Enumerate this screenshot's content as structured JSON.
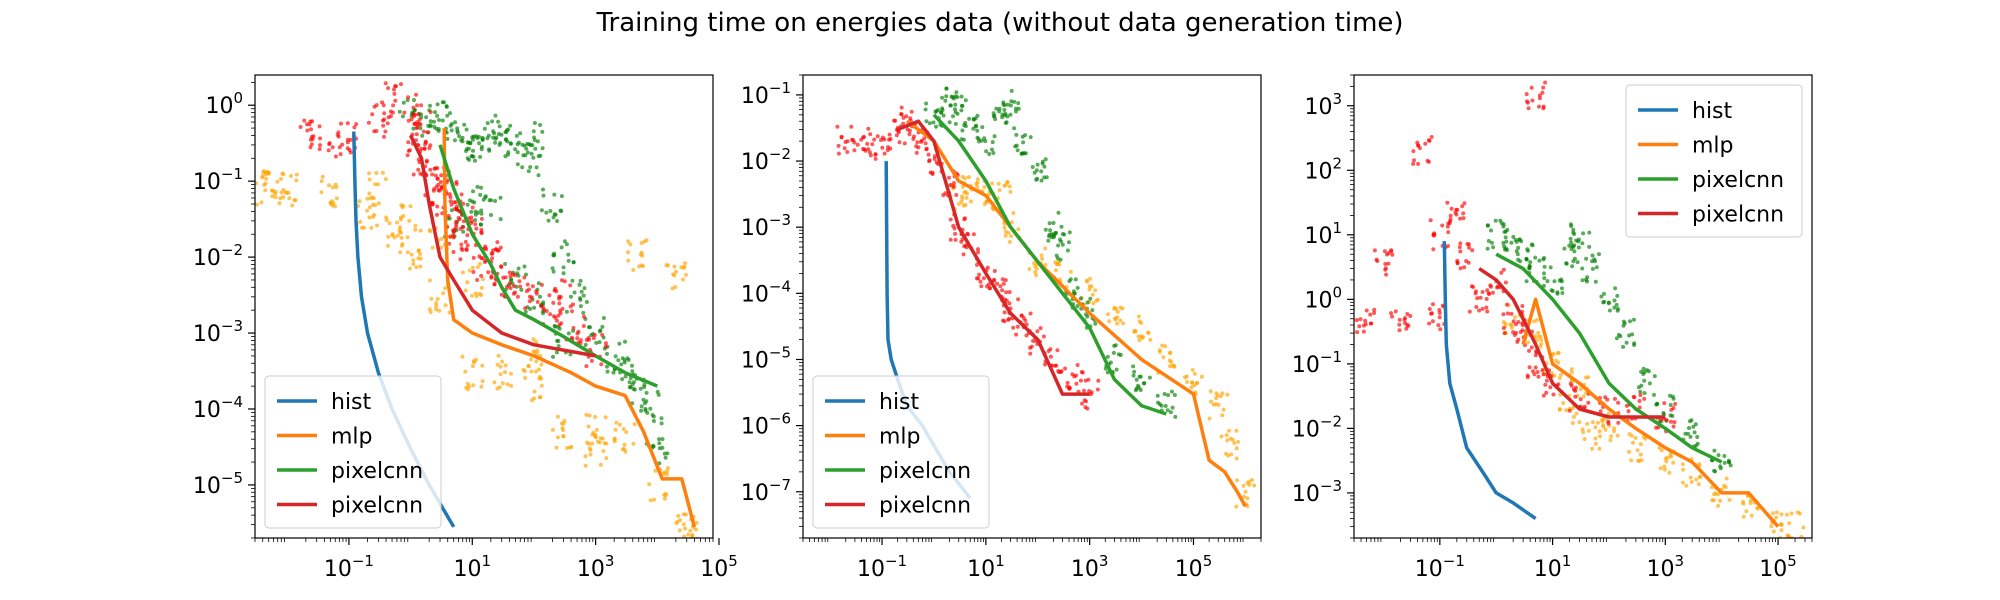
{
  "figure": {
    "title": "Training time on energies data (without data generation time)"
  },
  "colors": {
    "hist": "#1f77b4",
    "mlp": "#ff7f0e",
    "pixelcnn_a": "#2ca02c",
    "pixelcnn_b": "#d62728",
    "mlp_points": "#ffa500",
    "pixelcnn_a_points": "#008000",
    "pixelcnn_b_points": "#ff0000"
  },
  "chart_data": [
    {
      "type": "line",
      "title": "",
      "xlabel": "",
      "ylabel": "",
      "xscale": "log",
      "yscale": "log",
      "xlim": [
        0.003,
        80000
      ],
      "ylim": [
        2e-06,
        2.5
      ],
      "xticks": [
        0.1,
        10,
        1000,
        100000
      ],
      "xtick_labels": [
        {
          "base": "10",
          "exp": "−1"
        },
        {
          "base": "10",
          "exp": "1"
        },
        {
          "base": "10",
          "exp": "3"
        },
        {
          "base": "10",
          "exp": "5"
        }
      ],
      "yticks": [
        1e-05,
        0.0001,
        0.001,
        0.01,
        0.1,
        1
      ],
      "ytick_labels": [
        {
          "base": "10",
          "exp": "−5"
        },
        {
          "base": "10",
          "exp": "−4"
        },
        {
          "base": "10",
          "exp": "−3"
        },
        {
          "base": "10",
          "exp": "−2"
        },
        {
          "base": "10",
          "exp": "−1"
        },
        {
          "base": "10",
          "exp": "0"
        }
      ],
      "legend": {
        "position": "lower left",
        "entries": [
          "hist",
          "mlp",
          "pixelcnn",
          "pixelcnn"
        ]
      },
      "series": [
        {
          "name": "hist",
          "kind": "line",
          "color_key": "hist",
          "x": [
            0.12,
            0.125,
            0.13,
            0.14,
            0.16,
            0.2,
            0.3,
            0.5,
            1,
            2,
            5
          ],
          "y": [
            0.45,
            0.1,
            0.03,
            0.01,
            0.003,
            0.001,
            0.0003,
            0.0001,
            3e-05,
            1e-05,
            2.8e-06
          ]
        },
        {
          "name": "mlp",
          "kind": "line",
          "color_key": "mlp",
          "x": [
            3.5,
            3.6,
            4,
            5,
            10,
            30,
            100,
            400,
            1000,
            3000,
            6000,
            12000,
            25000,
            40000
          ],
          "y": [
            0.5,
            0.05,
            0.005,
            0.0015,
            0.001,
            0.0007,
            0.0005,
            0.0003,
            0.0002,
            0.00015,
            5e-05,
            1.2e-05,
            1.2e-05,
            2.8e-06
          ]
        },
        {
          "name": "pixelcnn",
          "kind": "line",
          "color_key": "pixelcnn_a",
          "x": [
            3,
            5,
            10,
            20,
            30,
            50,
            100,
            300,
            1000,
            3000,
            10000
          ],
          "y": [
            0.3,
            0.08,
            0.02,
            0.008,
            0.004,
            0.002,
            0.0015,
            0.0009,
            0.0005,
            0.0003,
            0.0002
          ]
        },
        {
          "name": "pixelcnn",
          "kind": "line",
          "color_key": "pixelcnn_b",
          "x": [
            1,
            1.5,
            2,
            3,
            5,
            10,
            30,
            100,
            1000
          ],
          "y": [
            0.4,
            0.2,
            0.05,
            0.01,
            0.005,
            0.002,
            0.001,
            0.0007,
            0.0005
          ]
        }
      ],
      "scatter_series": [
        {
          "name": "mlp points",
          "color_key": "mlp_points",
          "x": [
            0.004,
            0.006,
            0.01,
            0.05,
            0.2,
            0.5,
            1,
            3,
            10,
            30,
            100,
            300,
            1000,
            3000,
            10000,
            30000,
            0.3,
            1,
            3,
            10,
            100,
            1000,
            5000,
            20000,
            30000
          ],
          "y": [
            0.08,
            0.085,
            0.08,
            0.07,
            0.04,
            0.02,
            0.01,
            0.003,
            0.0003,
            0.0003,
            0.0002,
            5e-05,
            5e-05,
            4e-05,
            1e-05,
            2.8e-06,
            0.08,
            0.03,
            0.02,
            0.005,
            0.0005,
            3e-05,
            0.01,
            0.006,
            3e-06
          ]
        },
        {
          "name": "pixelcnn points",
          "color_key": "pixelcnn_a_points",
          "x": [
            1,
            2,
            3,
            5,
            8,
            10,
            20,
            30,
            50,
            80,
            100,
            200,
            300,
            500,
            1000,
            2000,
            3000,
            5000,
            8000,
            10000,
            5,
            10,
            20,
            50,
            100,
            300
          ],
          "y": [
            0.8,
            0.6,
            0.7,
            0.5,
            0.3,
            0.25,
            0.4,
            0.5,
            0.3,
            0.2,
            0.35,
            0.05,
            0.01,
            0.003,
            0.001,
            0.0005,
            0.0003,
            0.0002,
            0.0001,
            3e-05,
            0.03,
            0.05,
            0.04,
            0.005,
            0.003,
            0.0008
          ]
        },
        {
          "name": "pixelcnn points",
          "color_key": "pixelcnn_b_points",
          "x": [
            0.02,
            0.05,
            0.1,
            0.3,
            0.5,
            1,
            1.5,
            2,
            3,
            5,
            8,
            10,
            20,
            30,
            50,
            100,
            200,
            300,
            500,
            1000,
            1.2,
            2.5,
            4,
            6,
            15
          ],
          "y": [
            0.4,
            0.35,
            0.4,
            0.6,
            1.2,
            0.9,
            0.5,
            0.2,
            0.08,
            0.04,
            0.03,
            0.02,
            0.01,
            0.005,
            0.004,
            0.003,
            0.002,
            0.003,
            0.001,
            0.0006,
            0.2,
            0.1,
            0.06,
            0.015,
            0.008
          ]
        }
      ]
    },
    {
      "type": "line",
      "title": "",
      "xlabel": "",
      "ylabel": "",
      "xscale": "log",
      "yscale": "log",
      "xlim": [
        0.003,
        2000000
      ],
      "ylim": [
        2e-08,
        0.2
      ],
      "xticks": [
        0.1,
        10,
        1000,
        100000
      ],
      "xtick_labels": [
        {
          "base": "10",
          "exp": "−1"
        },
        {
          "base": "10",
          "exp": "1"
        },
        {
          "base": "10",
          "exp": "3"
        },
        {
          "base": "10",
          "exp": "5"
        }
      ],
      "yticks": [
        1e-07,
        1e-06,
        1e-05,
        0.0001,
        0.001,
        0.01,
        0.1
      ],
      "ytick_labels": [
        {
          "base": "10",
          "exp": "−7"
        },
        {
          "base": "10",
          "exp": "−6"
        },
        {
          "base": "10",
          "exp": "−5"
        },
        {
          "base": "10",
          "exp": "−4"
        },
        {
          "base": "10",
          "exp": "−3"
        },
        {
          "base": "10",
          "exp": "−2"
        },
        {
          "base": "10",
          "exp": "−1"
        }
      ],
      "legend": {
        "position": "lower left",
        "entries": [
          "hist",
          "mlp",
          "pixelcnn",
          "pixelcnn"
        ]
      },
      "series": [
        {
          "name": "hist",
          "kind": "line",
          "color_key": "hist",
          "x": [
            0.12,
            0.125,
            0.13,
            0.15,
            0.2,
            0.3,
            0.6,
            1,
            2,
            5
          ],
          "y": [
            0.01,
            0.0001,
            2e-05,
            1e-05,
            5e-06,
            2e-06,
            1e-06,
            5e-07,
            2e-07,
            8e-08
          ]
        },
        {
          "name": "mlp",
          "kind": "line",
          "color_key": "mlp",
          "x": [
            0.3,
            0.5,
            1,
            3,
            10,
            30,
            100,
            1000,
            10000,
            100000,
            200000,
            400000,
            700000,
            1000000
          ],
          "y": [
            0.04,
            0.03,
            0.02,
            0.005,
            0.003,
            0.001,
            0.0003,
            5e-05,
            1e-05,
            3e-06,
            3e-07,
            2e-07,
            1e-07,
            6e-08
          ]
        },
        {
          "name": "pixelcnn",
          "kind": "line",
          "color_key": "pixelcnn_a",
          "x": [
            1,
            3,
            10,
            30,
            100,
            300,
            1000,
            3000,
            10000,
            30000
          ],
          "y": [
            0.05,
            0.02,
            0.005,
            0.001,
            0.0003,
            0.0001,
            3e-05,
            5e-06,
            2e-06,
            1.5e-06
          ]
        },
        {
          "name": "pixelcnn",
          "kind": "line",
          "color_key": "pixelcnn_b",
          "x": [
            0.2,
            0.5,
            1,
            3,
            10,
            30,
            100,
            300,
            1000
          ],
          "y": [
            0.03,
            0.04,
            0.02,
            0.001,
            0.0002,
            5e-05,
            2e-05,
            3e-06,
            3e-06
          ]
        }
      ],
      "scatter_series": [
        {
          "name": "mlp points",
          "color_key": "mlp_points",
          "x": [
            3,
            10,
            30,
            100,
            300,
            1000,
            3000,
            10000,
            30000,
            100000,
            300000,
            500000,
            1000000,
            5,
            20
          ],
          "y": [
            0.003,
            0.003,
            0.001,
            0.0003,
            0.0002,
            0.0001,
            5e-05,
            3e-05,
            1e-05,
            5e-06,
            2e-06,
            5e-07,
            1e-07,
            0.004,
            0.003
          ]
        },
        {
          "name": "pixelcnn points",
          "color_key": "pixelcnn_a_points",
          "x": [
            1,
            2,
            3,
            5,
            10,
            20,
            30,
            50,
            100,
            200,
            300,
            500,
            1000,
            3000,
            10000,
            30000
          ],
          "y": [
            0.05,
            0.08,
            0.06,
            0.03,
            0.02,
            0.05,
            0.07,
            0.02,
            0.008,
            0.001,
            0.0005,
            0.0001,
            5e-05,
            1e-05,
            5e-06,
            2e-06
          ]
        },
        {
          "name": "pixelcnn points",
          "color_key": "pixelcnn_b_points",
          "x": [
            0.02,
            0.05,
            0.1,
            0.2,
            0.3,
            0.5,
            1,
            2,
            3,
            5,
            10,
            20,
            30,
            50,
            100,
            200,
            500,
            1000
          ],
          "y": [
            0.02,
            0.02,
            0.015,
            0.03,
            0.04,
            0.02,
            0.01,
            0.005,
            0.001,
            0.0005,
            0.0002,
            0.0001,
            5e-05,
            3e-05,
            2e-05,
            1e-05,
            5e-06,
            3e-06
          ]
        }
      ]
    },
    {
      "type": "line",
      "title": "",
      "xlabel": "",
      "ylabel": "",
      "xscale": "log",
      "yscale": "log",
      "xlim": [
        0.003,
        400000
      ],
      "ylim": [
        0.0002,
        3000
      ],
      "xticks": [
        0.1,
        10,
        1000,
        100000
      ],
      "xtick_labels": [
        {
          "base": "10",
          "exp": "−1"
        },
        {
          "base": "10",
          "exp": "1"
        },
        {
          "base": "10",
          "exp": "3"
        },
        {
          "base": "10",
          "exp": "5"
        }
      ],
      "yticks": [
        0.001,
        0.01,
        0.1,
        1,
        10,
        100,
        1000
      ],
      "ytick_labels": [
        {
          "base": "10",
          "exp": "−3"
        },
        {
          "base": "10",
          "exp": "−2"
        },
        {
          "base": "10",
          "exp": "−1"
        },
        {
          "base": "10",
          "exp": "0"
        },
        {
          "base": "10",
          "exp": "1"
        },
        {
          "base": "10",
          "exp": "2"
        },
        {
          "base": "10",
          "exp": "3"
        }
      ],
      "legend": {
        "position": "upper right",
        "entries": [
          "hist",
          "mlp",
          "pixelcnn",
          "pixelcnn"
        ]
      },
      "series": [
        {
          "name": "hist",
          "kind": "line",
          "color_key": "hist",
          "x": [
            0.12,
            0.125,
            0.13,
            0.15,
            0.2,
            0.3,
            0.6,
            1,
            2,
            5
          ],
          "y": [
            8,
            1,
            0.2,
            0.05,
            0.02,
            0.005,
            0.002,
            0.001,
            0.0007,
            0.0004
          ]
        },
        {
          "name": "mlp",
          "kind": "line",
          "color_key": "mlp",
          "x": [
            3,
            5,
            10,
            30,
            100,
            300,
            1000,
            3000,
            10000,
            30000,
            60000,
            100000
          ],
          "y": [
            0.2,
            1,
            0.1,
            0.05,
            0.02,
            0.01,
            0.005,
            0.003,
            0.001,
            0.001,
            0.0005,
            0.0003
          ]
        },
        {
          "name": "pixelcnn",
          "kind": "line",
          "color_key": "pixelcnn_a",
          "x": [
            1,
            3,
            10,
            30,
            100,
            300,
            1000,
            3000,
            10000
          ],
          "y": [
            5,
            3,
            1,
            0.3,
            0.05,
            0.02,
            0.01,
            0.005,
            0.003
          ]
        },
        {
          "name": "pixelcnn",
          "kind": "line",
          "color_key": "pixelcnn_b",
          "x": [
            0.5,
            1,
            2,
            3,
            5,
            10,
            30,
            100,
            300,
            1000
          ],
          "y": [
            3,
            2,
            1,
            0.5,
            0.2,
            0.05,
            0.02,
            0.015,
            0.015,
            0.015
          ]
        }
      ],
      "scatter_series": [
        {
          "name": "mlp points",
          "color_key": "mlp_points",
          "x": [
            2,
            5,
            10,
            30,
            100,
            300,
            1000,
            3000,
            10000,
            30000,
            100000,
            200000,
            20,
            50
          ],
          "y": [
            0.5,
            0.3,
            0.1,
            0.05,
            0.01,
            0.005,
            0.003,
            0.002,
            0.001,
            0.0007,
            0.0003,
            0.0003,
            0.02,
            0.008
          ]
        },
        {
          "name": "pixelcnn points",
          "color_key": "pixelcnn_a_points",
          "x": [
            1,
            2,
            3,
            5,
            10,
            20,
            30,
            50,
            100,
            200,
            500,
            1000,
            3000,
            10000
          ],
          "y": [
            10,
            8,
            5,
            3,
            2,
            5,
            10,
            3,
            1,
            0.3,
            0.05,
            0.02,
            0.008,
            0.003
          ]
        },
        {
          "name": "pixelcnn points",
          "color_key": "pixelcnn_b_points",
          "x": [
            0.005,
            0.01,
            0.02,
            0.05,
            0.08,
            0.1,
            0.2,
            0.3,
            0.5,
            1,
            2,
            3,
            5,
            10,
            30,
            100,
            300,
            1000,
            5
          ],
          "y": [
            0.5,
            4,
            0.4,
            200,
            0.5,
            10,
            20,
            5,
            1,
            2,
            0.5,
            0.3,
            0.1,
            0.05,
            0.03,
            0.02,
            0.02,
            0.015,
            1500
          ]
        }
      ]
    }
  ]
}
